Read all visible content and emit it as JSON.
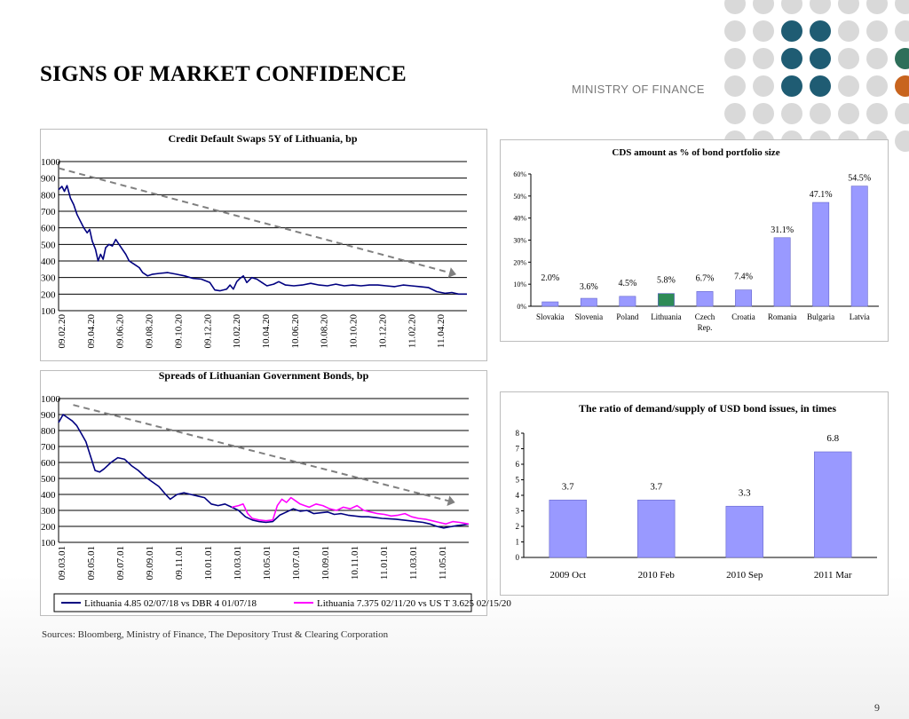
{
  "header": {
    "title": "SIGNS OF MARKET CONFIDENCE",
    "ministry": "MINISTRY OF FINANCE"
  },
  "footer": {
    "sources": "Sources: Bloomberg, Ministry of Finance, The Depository Trust & Clearing Corporation",
    "page_number": "9"
  },
  "colors": {
    "navy": "#000080",
    "magenta": "#ff00ff",
    "bar_fill": "#9999ff",
    "bar_highlight": "#2e8b57",
    "trend_arrow": "#808080",
    "dot_grey": "#d9d9d9",
    "dot_teal": "#1f5c73",
    "dot_green": "#2e6f5a",
    "dot_orange": "#c8641e"
  },
  "chart_data": [
    {
      "id": "cds",
      "type": "line",
      "title": "Credit Default Swaps 5Y of Lithuania, bp",
      "ylim": [
        100,
        1000
      ],
      "yticks": [
        "100",
        "200",
        "300",
        "400",
        "500",
        "600",
        "700",
        "800",
        "900",
        "1000"
      ],
      "xticks": [
        "09.02.20",
        "09.04.20",
        "09.06.20",
        "09.08.20",
        "09.10.20",
        "09.12.20",
        "10.02.20",
        "10.04.20",
        "10.06.20",
        "10.08.20",
        "10.10.20",
        "10.12.20",
        "11.02.20",
        "11.04.20"
      ],
      "grid": true,
      "trend_arrow": {
        "from": [
          0,
          960
        ],
        "to": [
          13.4,
          330
        ]
      },
      "series": [
        {
          "color": "#000080",
          "points": [
            [
              0,
              830
            ],
            [
              0.2,
              850
            ],
            [
              0.35,
              820
            ],
            [
              0.5,
              855
            ],
            [
              0.7,
              780
            ],
            [
              0.9,
              740
            ],
            [
              1.1,
              680
            ],
            [
              1.3,
              640
            ],
            [
              1.5,
              600
            ],
            [
              1.7,
              570
            ],
            [
              1.85,
              590
            ],
            [
              2.0,
              520
            ],
            [
              2.2,
              470
            ],
            [
              2.35,
              400
            ],
            [
              2.5,
              440
            ],
            [
              2.65,
              410
            ],
            [
              2.8,
              480
            ],
            [
              3.0,
              500
            ],
            [
              3.2,
              490
            ],
            [
              3.4,
              530
            ],
            [
              3.6,
              500
            ],
            [
              3.8,
              470
            ],
            [
              4.0,
              440
            ],
            [
              4.2,
              400
            ],
            [
              4.5,
              380
            ],
            [
              4.8,
              360
            ],
            [
              5.0,
              330
            ],
            [
              5.3,
              310
            ],
            [
              5.6,
              320
            ],
            [
              6.0,
              325
            ],
            [
              6.5,
              330
            ],
            [
              7.0,
              320
            ],
            [
              7.5,
              310
            ],
            [
              8.0,
              295
            ],
            [
              8.5,
              290
            ],
            [
              9.0,
              270
            ],
            [
              9.3,
              225
            ],
            [
              9.6,
              220
            ],
            [
              10.0,
              230
            ],
            [
              10.2,
              255
            ],
            [
              10.4,
              230
            ],
            [
              10.6,
              275
            ],
            [
              10.8,
              295
            ],
            [
              11.0,
              310
            ],
            [
              11.2,
              270
            ],
            [
              11.5,
              300
            ],
            [
              11.8,
              290
            ],
            [
              12.1,
              270
            ],
            [
              12.4,
              250
            ],
            [
              12.8,
              260
            ],
            [
              13.1,
              275
            ],
            [
              13.5,
              255
            ],
            [
              14.0,
              250
            ],
            [
              14.5,
              255
            ],
            [
              15.0,
              265
            ],
            [
              15.5,
              255
            ],
            [
              16.0,
              250
            ],
            [
              16.5,
              260
            ],
            [
              17.0,
              250
            ],
            [
              17.5,
              255
            ],
            [
              18.0,
              250
            ],
            [
              18.5,
              255
            ],
            [
              19.0,
              255
            ],
            [
              19.5,
              250
            ],
            [
              20.0,
              245
            ],
            [
              20.5,
              255
            ],
            [
              21.0,
              250
            ],
            [
              21.5,
              245
            ],
            [
              22.0,
              240
            ],
            [
              22.5,
              215
            ],
            [
              23.0,
              205
            ],
            [
              23.4,
              210
            ],
            [
              23.8,
              200
            ],
            [
              24.3,
              200
            ]
          ]
        }
      ]
    },
    {
      "id": "cds_amount",
      "type": "bar",
      "title": "CDS amount as % of bond portfolio size",
      "categories": [
        "Slovakia",
        "Slovenia",
        "Poland",
        "Lithuania",
        "Czech Rep.",
        "Croatia",
        "Romania",
        "Bulgaria",
        "Latvia"
      ],
      "values": [
        2.0,
        3.6,
        4.5,
        5.8,
        6.7,
        7.4,
        31.1,
        47.1,
        54.5
      ],
      "labels": [
        "2.0%",
        "3.6%",
        "4.5%",
        "5.8%",
        "6.7%",
        "7.4%",
        "31.1%",
        "47.1%",
        "54.5%"
      ],
      "highlight_index": 3,
      "ylim": [
        0,
        60
      ],
      "yticks": [
        "0%",
        "10%",
        "20%",
        "30%",
        "40%",
        "50%",
        "60%"
      ]
    },
    {
      "id": "spreads",
      "type": "line",
      "title": "Spreads of Lithuanian Government Bonds, bp",
      "ylim": [
        100,
        1000
      ],
      "yticks": [
        "100",
        "200",
        "300",
        "400",
        "500",
        "600",
        "700",
        "800",
        "900",
        "1000"
      ],
      "xticks": [
        "09.03.01",
        "09.05.01",
        "09.07.01",
        "09.09.01",
        "09.11.01",
        "10.01.01",
        "10.03.01",
        "10.05.01",
        "10.07.01",
        "10.09.01",
        "10.11.01",
        "11.01.01",
        "11.03.01",
        "11.05.01"
      ],
      "grid": true,
      "trend_arrow": {
        "from": [
          0.5,
          960
        ],
        "to": [
          13.3,
          360
        ]
      },
      "legend": {
        "position": "bottom",
        "entries": [
          "Lithuania 4.85 02/07/18 vs DBR 4 01/07/18",
          "Lithuania 7.375 02/11/20 vs US T 3.625 02/15/20"
        ]
      },
      "series": [
        {
          "name": "Lithuania 4.85 02/07/18 vs DBR 4 01/07/18",
          "color": "#000080",
          "points": [
            [
              0,
              850
            ],
            [
              0.2,
              900
            ],
            [
              0.4,
              880
            ],
            [
              0.6,
              860
            ],
            [
              0.8,
              830
            ],
            [
              1.0,
              780
            ],
            [
              1.2,
              730
            ],
            [
              1.4,
              640
            ],
            [
              1.6,
              550
            ],
            [
              1.8,
              540
            ],
            [
              2.0,
              560
            ],
            [
              2.3,
              600
            ],
            [
              2.6,
              630
            ],
            [
              2.9,
              620
            ],
            [
              3.2,
              580
            ],
            [
              3.5,
              550
            ],
            [
              3.8,
              510
            ],
            [
              4.1,
              480
            ],
            [
              4.4,
              450
            ],
            [
              4.7,
              400
            ],
            [
              4.9,
              370
            ],
            [
              5.2,
              400
            ],
            [
              5.5,
              410
            ],
            [
              5.8,
              400
            ],
            [
              6.1,
              390
            ],
            [
              6.4,
              380
            ],
            [
              6.7,
              340
            ],
            [
              7.0,
              330
            ],
            [
              7.3,
              340
            ],
            [
              7.6,
              320
            ],
            [
              7.9,
              300
            ],
            [
              8.2,
              260
            ],
            [
              8.5,
              240
            ],
            [
              8.8,
              230
            ],
            [
              9.1,
              225
            ],
            [
              9.4,
              230
            ],
            [
              9.7,
              270
            ],
            [
              10.0,
              290
            ],
            [
              10.3,
              310
            ],
            [
              10.6,
              295
            ],
            [
              10.9,
              300
            ],
            [
              11.2,
              280
            ],
            [
              11.5,
              285
            ],
            [
              11.8,
              290
            ],
            [
              12.1,
              275
            ],
            [
              12.4,
              280
            ],
            [
              12.7,
              270
            ],
            [
              13.0,
              265
            ],
            [
              13.3,
              260
            ],
            [
              13.6,
              260
            ],
            [
              13.9,
              255
            ],
            [
              14.2,
              250
            ],
            [
              14.5,
              248
            ],
            [
              14.8,
              245
            ],
            [
              15.1,
              240
            ],
            [
              15.4,
              235
            ],
            [
              15.7,
              230
            ],
            [
              16.0,
              225
            ],
            [
              16.3,
              215
            ],
            [
              16.6,
              200
            ],
            [
              16.9,
              190
            ],
            [
              17.2,
              198
            ],
            [
              17.5,
              205
            ],
            [
              17.8,
              210
            ],
            [
              18.0,
              215
            ]
          ]
        },
        {
          "name": "Lithuania 7.375 02/11/20 vs US T 3.625 02/15/20",
          "color": "#ff00ff",
          "points": [
            [
              7.6,
              320
            ],
            [
              7.9,
              330
            ],
            [
              8.1,
              340
            ],
            [
              8.3,
              280
            ],
            [
              8.5,
              250
            ],
            [
              8.8,
              240
            ],
            [
              9.1,
              235
            ],
            [
              9.4,
              240
            ],
            [
              9.6,
              330
            ],
            [
              9.8,
              370
            ],
            [
              10.0,
              350
            ],
            [
              10.2,
              380
            ],
            [
              10.4,
              360
            ],
            [
              10.6,
              340
            ],
            [
              10.8,
              330
            ],
            [
              11.0,
              320
            ],
            [
              11.3,
              340
            ],
            [
              11.6,
              330
            ],
            [
              11.9,
              310
            ],
            [
              12.2,
              300
            ],
            [
              12.5,
              320
            ],
            [
              12.8,
              310
            ],
            [
              13.1,
              330
            ],
            [
              13.4,
              300
            ],
            [
              13.7,
              290
            ],
            [
              14.0,
              280
            ],
            [
              14.3,
              275
            ],
            [
              14.6,
              265
            ],
            [
              14.9,
              270
            ],
            [
              15.2,
              280
            ],
            [
              15.5,
              260
            ],
            [
              15.8,
              250
            ],
            [
              16.1,
              245
            ],
            [
              16.4,
              235
            ],
            [
              16.7,
              225
            ],
            [
              17.0,
              215
            ],
            [
              17.3,
              230
            ],
            [
              17.6,
              225
            ],
            [
              18.0,
              215
            ]
          ]
        }
      ]
    },
    {
      "id": "demand_supply",
      "type": "bar",
      "title": "The ratio of demand/supply of USD bond issues, in times",
      "categories": [
        "2009 Oct",
        "2010 Feb",
        "2010 Sep",
        "2011 Mar"
      ],
      "values": [
        3.7,
        3.7,
        3.3,
        6.8
      ],
      "labels": [
        "3.7",
        "3.7",
        "3.3",
        "6.8"
      ],
      "ylim": [
        0,
        8
      ],
      "yticks": [
        "0",
        "1",
        "2",
        "3",
        "4",
        "5",
        "6",
        "7",
        "8"
      ]
    }
  ]
}
